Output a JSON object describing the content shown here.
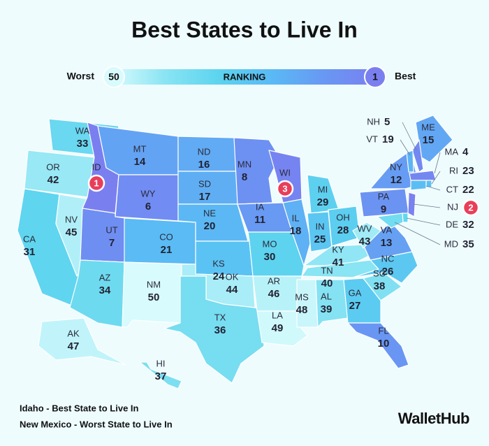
{
  "header": {
    "title": "Best States to Live In"
  },
  "legend": {
    "worst_label": "Worst",
    "worst_value": 50,
    "title": "RANKING",
    "best_value": 1,
    "best_label": "Best"
  },
  "states": [
    {
      "abbr": "WA",
      "rank": 33
    },
    {
      "abbr": "OR",
      "rank": 42
    },
    {
      "abbr": "CA",
      "rank": 31
    },
    {
      "abbr": "NV",
      "rank": 45
    },
    {
      "abbr": "ID",
      "rank": 1
    },
    {
      "abbr": "MT",
      "rank": 14
    },
    {
      "abbr": "WY",
      "rank": 6
    },
    {
      "abbr": "UT",
      "rank": 7
    },
    {
      "abbr": "AZ",
      "rank": 34
    },
    {
      "abbr": "CO",
      "rank": 21
    },
    {
      "abbr": "NM",
      "rank": 50
    },
    {
      "abbr": "ND",
      "rank": 16
    },
    {
      "abbr": "SD",
      "rank": 17
    },
    {
      "abbr": "NE",
      "rank": 20
    },
    {
      "abbr": "KS",
      "rank": 24
    },
    {
      "abbr": "OK",
      "rank": 44
    },
    {
      "abbr": "TX",
      "rank": 36
    },
    {
      "abbr": "MN",
      "rank": 8
    },
    {
      "abbr": "IA",
      "rank": 11
    },
    {
      "abbr": "MO",
      "rank": 30
    },
    {
      "abbr": "AR",
      "rank": 46
    },
    {
      "abbr": "LA",
      "rank": 49
    },
    {
      "abbr": "WI",
      "rank": 3
    },
    {
      "abbr": "IL",
      "rank": 18
    },
    {
      "abbr": "MI",
      "rank": 29
    },
    {
      "abbr": "IN",
      "rank": 25
    },
    {
      "abbr": "OH",
      "rank": 28
    },
    {
      "abbr": "KY",
      "rank": 41
    },
    {
      "abbr": "TN",
      "rank": 40
    },
    {
      "abbr": "MS",
      "rank": 48
    },
    {
      "abbr": "AL",
      "rank": 39
    },
    {
      "abbr": "GA",
      "rank": 27
    },
    {
      "abbr": "FL",
      "rank": 10
    },
    {
      "abbr": "SC",
      "rank": 38
    },
    {
      "abbr": "NC",
      "rank": 26
    },
    {
      "abbr": "VA",
      "rank": 13
    },
    {
      "abbr": "WV",
      "rank": 43
    },
    {
      "abbr": "PA",
      "rank": 9
    },
    {
      "abbr": "NY",
      "rank": 12
    },
    {
      "abbr": "ME",
      "rank": 15
    },
    {
      "abbr": "NH",
      "rank": 5
    },
    {
      "abbr": "VT",
      "rank": 19
    },
    {
      "abbr": "MA",
      "rank": 4
    },
    {
      "abbr": "RI",
      "rank": 23
    },
    {
      "abbr": "CT",
      "rank": 22
    },
    {
      "abbr": "NJ",
      "rank": 2
    },
    {
      "abbr": "DE",
      "rank": 32
    },
    {
      "abbr": "MD",
      "rank": 35
    },
    {
      "abbr": "AK",
      "rank": 47
    },
    {
      "abbr": "HI",
      "rank": 37
    }
  ],
  "footnotes": [
    "Idaho - Best State to Live In",
    "New Mexico - Worst State to Live In"
  ],
  "brand": "WalletHub"
}
